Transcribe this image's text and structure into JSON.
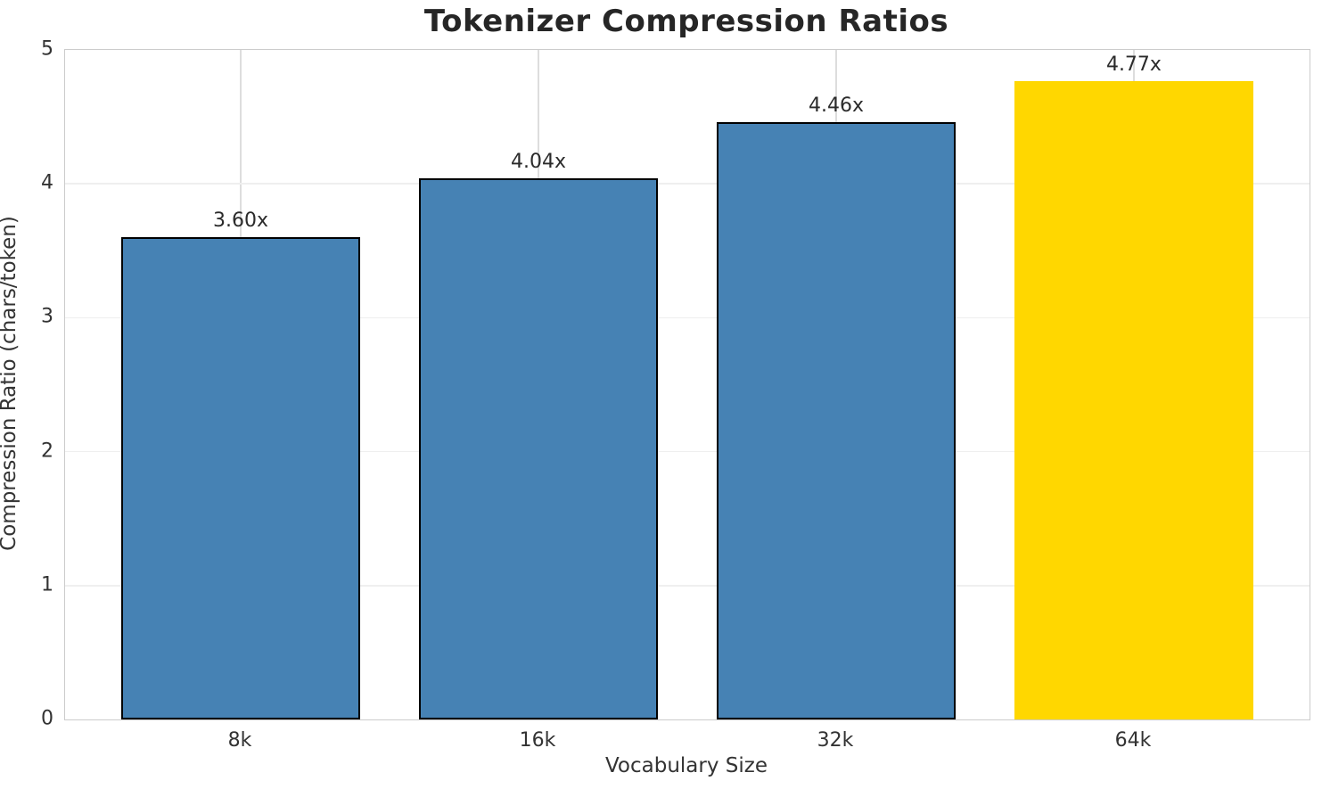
{
  "chart_data": {
    "type": "bar",
    "title": "Tokenizer Compression Ratios",
    "xlabel": "Vocabulary Size",
    "ylabel": "Compression Ratio (chars/token)",
    "categories": [
      "8k",
      "16k",
      "32k",
      "64k"
    ],
    "values": [
      3.6,
      4.04,
      4.46,
      4.77
    ],
    "bar_labels": [
      "3.60x",
      "4.04x",
      "4.46x",
      "4.77x"
    ],
    "bar_colors": [
      "#4682b4",
      "#4682b4",
      "#4682b4",
      "#ffd700"
    ],
    "bar_edge_colors": [
      "#000000",
      "#000000",
      "#000000",
      "none"
    ],
    "default_bar_color": "#4682b4",
    "highlight_bar_color": "#ffd700",
    "ylim": [
      0,
      5
    ],
    "yticks": [
      0,
      1,
      2,
      3,
      4,
      5
    ],
    "grid": "both",
    "legend": "none"
  }
}
